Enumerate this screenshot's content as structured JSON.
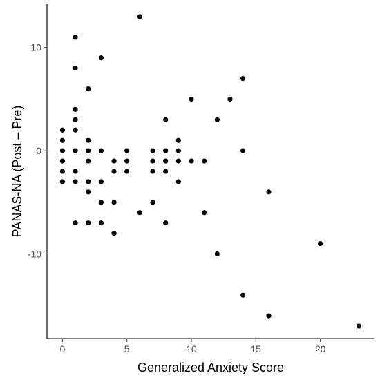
{
  "chart_data": {
    "type": "scatter",
    "xlabel": "Generalized Anxiety Score",
    "ylabel": "PANAS-NA (Post – Pre)",
    "xlim": [
      -1.2,
      24.2
    ],
    "ylim": [
      -18.2,
      14.2
    ],
    "xticks": [
      0,
      5,
      10,
      15,
      20
    ],
    "yticks": [
      -10,
      0,
      10
    ],
    "grid": false,
    "point_color": "#000000",
    "points": [
      {
        "x": 0,
        "y": 2
      },
      {
        "x": 0,
        "y": 1
      },
      {
        "x": 0,
        "y": 0
      },
      {
        "x": 0,
        "y": -1
      },
      {
        "x": 0,
        "y": -2
      },
      {
        "x": 0,
        "y": -3
      },
      {
        "x": 1,
        "y": 11
      },
      {
        "x": 1,
        "y": 8
      },
      {
        "x": 1,
        "y": 4
      },
      {
        "x": 1,
        "y": 3
      },
      {
        "x": 1,
        "y": 2
      },
      {
        "x": 1,
        "y": 0
      },
      {
        "x": 1,
        "y": -2
      },
      {
        "x": 1,
        "y": -3
      },
      {
        "x": 1,
        "y": -7
      },
      {
        "x": 2,
        "y": 6
      },
      {
        "x": 2,
        "y": 1
      },
      {
        "x": 2,
        "y": 0
      },
      {
        "x": 2,
        "y": -1
      },
      {
        "x": 2,
        "y": -3
      },
      {
        "x": 2,
        "y": -4
      },
      {
        "x": 2,
        "y": -7
      },
      {
        "x": 3,
        "y": 9
      },
      {
        "x": 3,
        "y": 0
      },
      {
        "x": 3,
        "y": -3
      },
      {
        "x": 3,
        "y": -5
      },
      {
        "x": 3,
        "y": -7
      },
      {
        "x": 4,
        "y": -1
      },
      {
        "x": 4,
        "y": -2
      },
      {
        "x": 4,
        "y": -5
      },
      {
        "x": 4,
        "y": -8
      },
      {
        "x": 5,
        "y": 0
      },
      {
        "x": 5,
        "y": -1
      },
      {
        "x": 5,
        "y": -2
      },
      {
        "x": 6,
        "y": 13
      },
      {
        "x": 6,
        "y": -6
      },
      {
        "x": 7,
        "y": 0
      },
      {
        "x": 7,
        "y": -1
      },
      {
        "x": 7,
        "y": -2
      },
      {
        "x": 7,
        "y": -5
      },
      {
        "x": 8,
        "y": 3
      },
      {
        "x": 8,
        "y": 0
      },
      {
        "x": 8,
        "y": -1
      },
      {
        "x": 8,
        "y": -2
      },
      {
        "x": 8,
        "y": -7
      },
      {
        "x": 9,
        "y": 1
      },
      {
        "x": 9,
        "y": 0
      },
      {
        "x": 9,
        "y": -1
      },
      {
        "x": 9,
        "y": -3
      },
      {
        "x": 10,
        "y": 5
      },
      {
        "x": 10,
        "y": -1
      },
      {
        "x": 11,
        "y": -1
      },
      {
        "x": 11,
        "y": -6
      },
      {
        "x": 12,
        "y": 3
      },
      {
        "x": 12,
        "y": -10
      },
      {
        "x": 13,
        "y": 5
      },
      {
        "x": 14,
        "y": 7
      },
      {
        "x": 14,
        "y": 0
      },
      {
        "x": 14,
        "y": -14
      },
      {
        "x": 16,
        "y": -4
      },
      {
        "x": 16,
        "y": -16
      },
      {
        "x": 20,
        "y": -9
      },
      {
        "x": 23,
        "y": -17
      }
    ]
  }
}
